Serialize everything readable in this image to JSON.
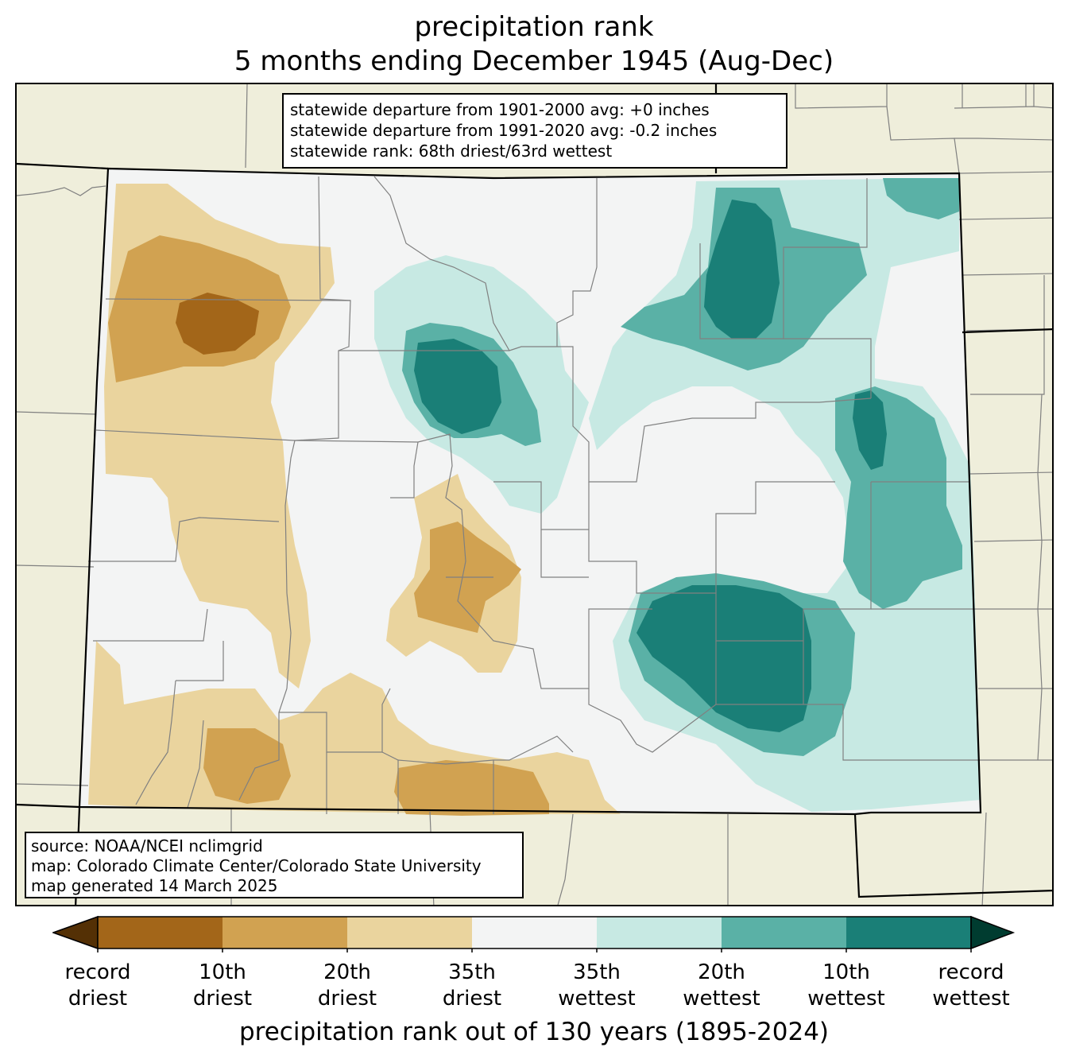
{
  "title": {
    "line1": "precipitation rank",
    "line2": "5 months ending December 1945 (Aug-Dec)"
  },
  "stats": {
    "line1": "statewide departure from 1901-2000 avg: +0 inches",
    "line2": "statewide departure from 1991-2020 avg: -0.2 inches",
    "line3": "statewide rank: 68th driest/63rd wettest"
  },
  "source": {
    "line1": "source: NOAA/NCEI nclimgrid",
    "line2": "map: Colorado Climate Center/Colorado State University",
    "line3": "map generated 14 March 2025"
  },
  "colorbar": {
    "label": "precipitation rank out of 130 years (1895-2024)",
    "ticks": [
      {
        "line1": "record",
        "line2": "driest"
      },
      {
        "line1": "10th",
        "line2": "driest"
      },
      {
        "line1": "20th",
        "line2": "driest"
      },
      {
        "line1": "35th",
        "line2": "driest"
      },
      {
        "line1": "35th",
        "line2": "wettest"
      },
      {
        "line1": "20th",
        "line2": "wettest"
      },
      {
        "line1": "10th",
        "line2": "wettest"
      },
      {
        "line1": "record",
        "line2": "wettest"
      }
    ],
    "colors": [
      "#a36619",
      "#d1a251",
      "#ead49e",
      "#f3f4f4",
      "#c7e9e3",
      "#5ab1a6",
      "#1a7f77"
    ],
    "extend_low_color": "#543005",
    "extend_high_color": "#003c30"
  },
  "map_colors": {
    "land_outside": "#efeedb",
    "state_inside": "#f3f4f4",
    "county_lines": "#808080",
    "state_lines": "#000000"
  }
}
